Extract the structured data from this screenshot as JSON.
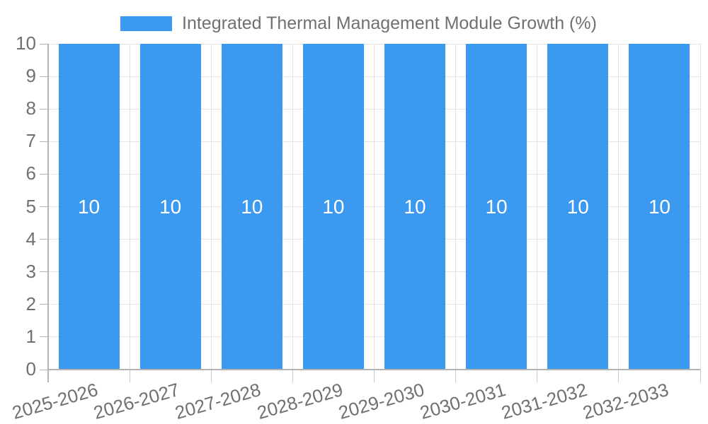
{
  "legend": {
    "label": "Integrated Thermal Management Module Growth (%)"
  },
  "chart_data": {
    "type": "bar",
    "title": "Integrated Thermal Management Module Growth (%)",
    "categories": [
      "2025-2026",
      "2026-2027",
      "2027-2028",
      "2028-2029",
      "2029-2030",
      "2030-2031",
      "2031-2032",
      "2032-2033"
    ],
    "values": [
      10,
      10,
      10,
      10,
      10,
      10,
      10,
      10
    ],
    "bar_labels": [
      "10",
      "10",
      "10",
      "10",
      "10",
      "10",
      "10",
      "10"
    ],
    "xlabel": "",
    "ylabel": "",
    "ylim": [
      0,
      10
    ],
    "yticks": [
      0,
      1,
      2,
      3,
      4,
      5,
      6,
      7,
      8,
      9,
      10
    ],
    "grid": true,
    "legend_position": "top",
    "x_label_rotation_deg": -16,
    "colors": {
      "bar": "#3b99f0",
      "bar_label": "#ffffff",
      "axis_text": "#707070",
      "legend_text": "#707070",
      "axis_line": "#b3b3b3",
      "gridline": "#e3e3e3",
      "tick": "#c9c9c9",
      "background": "#ffffff"
    }
  }
}
